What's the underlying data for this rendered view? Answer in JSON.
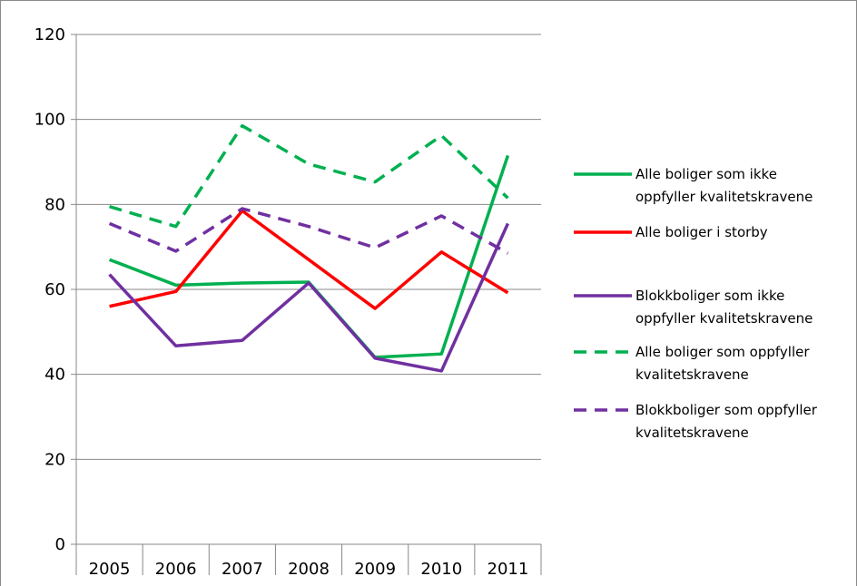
{
  "chart_data": {
    "type": "line",
    "title": "",
    "xlabel": "",
    "ylabel": "",
    "ylim": [
      0,
      120
    ],
    "y_ticks": [
      "0",
      "20",
      "40",
      "60",
      "80",
      "100",
      "120"
    ],
    "categories": [
      "2005",
      "2006",
      "2007",
      "2008",
      "2009",
      "2010",
      "2011"
    ],
    "grid": "horizontal",
    "legend_position": "right",
    "series": [
      {
        "name": "Alle boliger som ikke oppfyller kvalitetskravene",
        "legend_lines": [
          "Alle boliger som ikke",
          "oppfyller kvalitetskravene"
        ],
        "color": "#00b050",
        "dash": "solid",
        "values": [
          67,
          61,
          61.5,
          61.7,
          44,
          44.8,
          91.5
        ]
      },
      {
        "name": "Alle boliger i storby",
        "legend_lines": [
          "Alle boliger i storby"
        ],
        "color": "#ff0000",
        "dash": "solid",
        "values": [
          56,
          59.5,
          78.5,
          67,
          55.5,
          68.8,
          59.2
        ]
      },
      {
        "name": "Blokkboliger som ikke oppfyller kvalitetskravene",
        "legend_lines": [
          "Blokkboliger som ikke",
          "oppfyller kvalitetskravene"
        ],
        "color": "#7030a0",
        "dash": "solid",
        "values": [
          63.5,
          46.7,
          48,
          61.5,
          43.8,
          40.8,
          75.5
        ]
      },
      {
        "name": "Alle boliger som oppfyller kvalitetskravene",
        "legend_lines": [
          "Alle boliger som oppfyller",
          "kvalitetskravene"
        ],
        "color": "#00b050",
        "dash": "dashed",
        "values": [
          79.5,
          74.8,
          98.5,
          89.5,
          85.3,
          96.2,
          81.5
        ]
      },
      {
        "name": "Blokkboliger som oppfyller kvalitetskravene",
        "legend_lines": [
          "Blokkboliger som oppfyller",
          "kvalitetskravene"
        ],
        "color": "#7030a0",
        "dash": "dashed",
        "values": [
          75.5,
          69,
          79,
          74.8,
          69.8,
          77.3,
          68.5
        ]
      }
    ]
  }
}
